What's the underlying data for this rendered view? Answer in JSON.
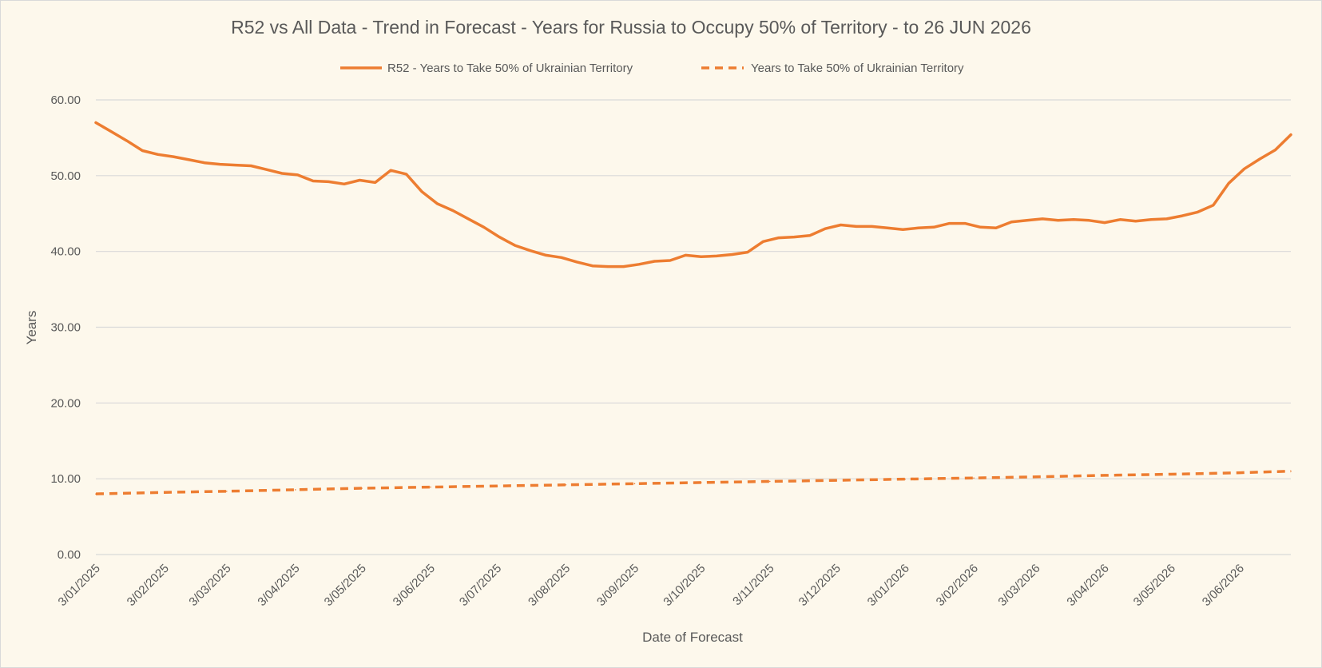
{
  "chart_data": {
    "type": "line",
    "title": "R52 vs All Data  - Trend in Forecast - Years for Russia to Occupy 50% of Territory - to 26 JUN 2026",
    "xlabel": "Date of Forecast",
    "ylabel": "Years",
    "ylim": [
      0,
      60
    ],
    "yticks": [
      "0.00",
      "10.00",
      "20.00",
      "30.00",
      "40.00",
      "50.00",
      "60.00"
    ],
    "xlim": [
      "2025-01-03",
      "2026-06-26"
    ],
    "xticks": [
      {
        "date": "2025-01-03",
        "label": "3/01/2025"
      },
      {
        "date": "2025-02-03",
        "label": "3/02/2025"
      },
      {
        "date": "2025-03-03",
        "label": "3/03/2025"
      },
      {
        "date": "2025-04-03",
        "label": "3/04/2025"
      },
      {
        "date": "2025-05-03",
        "label": "3/05/2025"
      },
      {
        "date": "2025-06-03",
        "label": "3/06/2025"
      },
      {
        "date": "2025-07-03",
        "label": "3/07/2025"
      },
      {
        "date": "2025-08-03",
        "label": "3/08/2025"
      },
      {
        "date": "2025-09-03",
        "label": "3/09/2025"
      },
      {
        "date": "2025-10-03",
        "label": "3/10/2025"
      },
      {
        "date": "2025-11-03",
        "label": "3/11/2025"
      },
      {
        "date": "2025-12-03",
        "label": "3/12/2025"
      },
      {
        "date": "2026-01-03",
        "label": "3/01/2026"
      },
      {
        "date": "2026-02-03",
        "label": "3/02/2026"
      },
      {
        "date": "2026-03-03",
        "label": "3/03/2026"
      },
      {
        "date": "2026-04-03",
        "label": "3/04/2026"
      },
      {
        "date": "2026-05-03",
        "label": "3/05/2026"
      },
      {
        "date": "2026-06-03",
        "label": "3/06/2026"
      }
    ],
    "grid": true,
    "legend_position": "top",
    "series": [
      {
        "name": "R52 - Years to Take  50% of Ukrainian Territory",
        "style": "solid",
        "color": "#ed7d31",
        "points": [
          [
            "2025-01-03",
            57.0
          ],
          [
            "2025-01-10",
            55.8
          ],
          [
            "2025-01-17",
            54.6
          ],
          [
            "2025-01-24",
            53.3
          ],
          [
            "2025-01-31",
            52.8
          ],
          [
            "2025-02-07",
            52.5
          ],
          [
            "2025-02-14",
            52.1
          ],
          [
            "2025-02-21",
            51.7
          ],
          [
            "2025-02-28",
            51.5
          ],
          [
            "2025-03-07",
            51.4
          ],
          [
            "2025-03-14",
            51.3
          ],
          [
            "2025-03-21",
            50.8
          ],
          [
            "2025-03-28",
            50.3
          ],
          [
            "2025-04-04",
            50.1
          ],
          [
            "2025-04-11",
            49.3
          ],
          [
            "2025-04-18",
            49.2
          ],
          [
            "2025-04-25",
            48.9
          ],
          [
            "2025-05-02",
            49.4
          ],
          [
            "2025-05-09",
            49.1
          ],
          [
            "2025-05-16",
            50.7
          ],
          [
            "2025-05-23",
            50.2
          ],
          [
            "2025-05-30",
            47.9
          ],
          [
            "2025-06-06",
            46.3
          ],
          [
            "2025-06-13",
            45.4
          ],
          [
            "2025-06-20",
            44.3
          ],
          [
            "2025-06-27",
            43.2
          ],
          [
            "2025-07-04",
            41.9
          ],
          [
            "2025-07-11",
            40.8
          ],
          [
            "2025-07-18",
            40.1
          ],
          [
            "2025-07-25",
            39.5
          ],
          [
            "2025-08-01",
            39.2
          ],
          [
            "2025-08-08",
            38.6
          ],
          [
            "2025-08-15",
            38.1
          ],
          [
            "2025-08-22",
            38.0
          ],
          [
            "2025-08-29",
            38.0
          ],
          [
            "2025-09-05",
            38.3
          ],
          [
            "2025-09-12",
            38.7
          ],
          [
            "2025-09-19",
            38.8
          ],
          [
            "2025-09-26",
            39.5
          ],
          [
            "2025-10-03",
            39.3
          ],
          [
            "2025-10-10",
            39.4
          ],
          [
            "2025-10-17",
            39.6
          ],
          [
            "2025-10-24",
            39.9
          ],
          [
            "2025-10-31",
            41.3
          ],
          [
            "2025-11-07",
            41.8
          ],
          [
            "2025-11-14",
            41.9
          ],
          [
            "2025-11-21",
            42.1
          ],
          [
            "2025-11-28",
            43.0
          ],
          [
            "2025-12-05",
            43.5
          ],
          [
            "2025-12-12",
            43.3
          ],
          [
            "2025-12-19",
            43.3
          ],
          [
            "2025-12-26",
            43.1
          ],
          [
            "2026-01-02",
            42.9
          ],
          [
            "2026-01-09",
            43.1
          ],
          [
            "2026-01-16",
            43.2
          ],
          [
            "2026-01-23",
            43.7
          ],
          [
            "2026-01-30",
            43.7
          ],
          [
            "2026-02-06",
            43.2
          ],
          [
            "2026-02-13",
            43.1
          ],
          [
            "2026-02-20",
            43.9
          ],
          [
            "2026-02-27",
            44.1
          ],
          [
            "2026-03-06",
            44.3
          ],
          [
            "2026-03-13",
            44.1
          ],
          [
            "2026-03-20",
            44.2
          ],
          [
            "2026-03-27",
            44.1
          ],
          [
            "2026-04-03",
            43.8
          ],
          [
            "2026-04-10",
            44.2
          ],
          [
            "2026-04-17",
            44.0
          ],
          [
            "2026-04-24",
            44.2
          ],
          [
            "2026-05-01",
            44.3
          ],
          [
            "2026-05-08",
            44.7
          ],
          [
            "2026-05-15",
            45.2
          ],
          [
            "2026-05-22",
            46.1
          ],
          [
            "2026-05-29",
            49.0
          ],
          [
            "2026-06-05",
            50.9
          ],
          [
            "2026-06-12",
            52.2
          ],
          [
            "2026-06-19",
            53.4
          ],
          [
            "2026-06-26",
            55.4
          ]
        ]
      },
      {
        "name": "Years to Take  50% of Ukrainian Territory",
        "style": "dashed",
        "color": "#ed7d31",
        "points": [
          [
            "2025-01-03",
            8.0
          ],
          [
            "2025-02-03",
            8.2
          ],
          [
            "2025-03-03",
            8.35
          ],
          [
            "2025-04-03",
            8.55
          ],
          [
            "2025-05-03",
            8.75
          ],
          [
            "2025-06-03",
            8.9
          ],
          [
            "2025-07-03",
            9.05
          ],
          [
            "2025-08-03",
            9.2
          ],
          [
            "2025-09-03",
            9.35
          ],
          [
            "2025-10-03",
            9.5
          ],
          [
            "2025-11-03",
            9.65
          ],
          [
            "2025-12-03",
            9.8
          ],
          [
            "2026-01-03",
            9.95
          ],
          [
            "2026-02-03",
            10.1
          ],
          [
            "2026-03-03",
            10.25
          ],
          [
            "2026-04-03",
            10.45
          ],
          [
            "2026-05-03",
            10.6
          ],
          [
            "2026-06-03",
            10.8
          ],
          [
            "2026-06-26",
            11.0
          ]
        ]
      }
    ]
  }
}
